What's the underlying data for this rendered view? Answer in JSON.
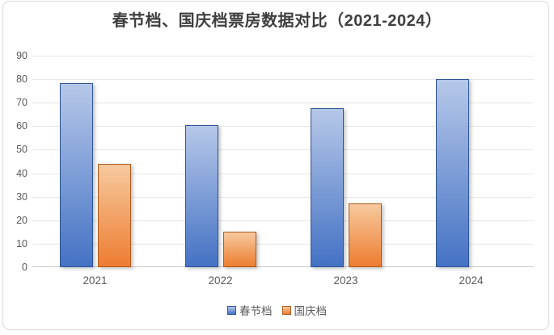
{
  "chart_data": {
    "type": "bar",
    "title": "春节档、国庆档票房数据对比（2021-2024）",
    "categories": [
      "2021",
      "2022",
      "2023",
      "2024"
    ],
    "series": [
      {
        "name": "春节档",
        "values": [
          78.4,
          60.4,
          67.6,
          80.2
        ],
        "fill_bottom": "#4472c4",
        "fill_top": "#b6c8e9",
        "border": "#2f5597"
      },
      {
        "name": "国庆档",
        "values": [
          43.9,
          15,
          27.3,
          null
        ],
        "fill_bottom": "#ed7d31",
        "fill_top": "#f7c99e",
        "border": "#ad5a1d"
      }
    ],
    "xlabel": "",
    "ylabel": "",
    "ylim": [
      0,
      90
    ],
    "ytick_step": 10,
    "yticks": [
      "0",
      "10",
      "20",
      "30",
      "40",
      "50",
      "60",
      "70",
      "80",
      "90"
    ],
    "grid": true,
    "legend_position": "bottom"
  },
  "colors": {
    "frame_border": "#d9d9d9",
    "title_text": "#3f3f3f",
    "tick_text": "#595959",
    "gridline": "#e7e7e7",
    "axis_line": "#c9c9c9",
    "background": "#ffffff"
  }
}
